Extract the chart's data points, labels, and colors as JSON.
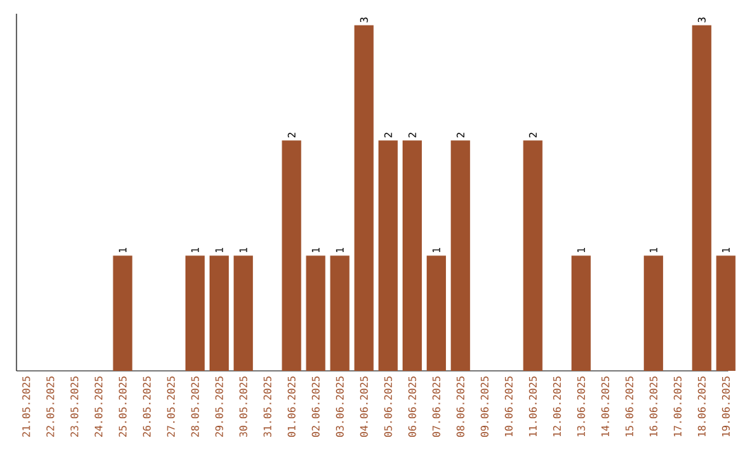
{
  "chart_data": {
    "type": "bar",
    "categories": [
      "21.05.2025",
      "22.05.2025",
      "23.05.2025",
      "24.05.2025",
      "25.05.2025",
      "26.05.2025",
      "27.05.2025",
      "28.05.2025",
      "29.05.2025",
      "30.05.2025",
      "31.05.2025",
      "01.06.2025",
      "02.06.2025",
      "03.06.2025",
      "04.06.2025",
      "05.06.2025",
      "06.06.2025",
      "07.06.2025",
      "08.06.2025",
      "09.06.2025",
      "10.06.2025",
      "11.06.2025",
      "12.06.2025",
      "13.06.2025",
      "14.06.2025",
      "15.06.2025",
      "16.06.2025",
      "17.06.2025",
      "18.06.2025",
      "19.06.2025"
    ],
    "values": [
      0,
      0,
      0,
      0,
      1,
      0,
      0,
      1,
      1,
      1,
      0,
      2,
      1,
      1,
      3,
      2,
      2,
      1,
      2,
      0,
      0,
      2,
      0,
      1,
      0,
      0,
      1,
      0,
      3,
      1
    ],
    "value_labels": [
      null,
      null,
      null,
      null,
      "1",
      null,
      null,
      "1",
      "1",
      "1",
      null,
      "2",
      "1",
      "1",
      "3",
      "2",
      "2",
      "1",
      "2",
      null,
      null,
      "2",
      null,
      "1",
      null,
      null,
      "1",
      null,
      "3",
      "1"
    ],
    "color": "#a0522d",
    "ylim": [
      0,
      3.1
    ],
    "tick_labels": "x"
  }
}
